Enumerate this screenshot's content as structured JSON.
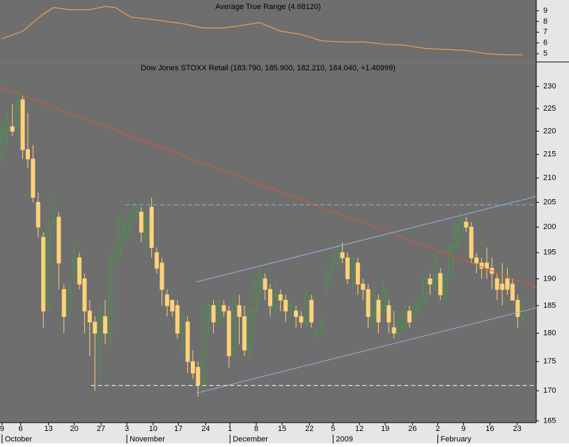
{
  "chart_data": [
    {
      "type": "line",
      "title": "Average True Range (4.68120)",
      "xlim": [
        -0.4,
        103.6
      ],
      "ylim": [
        4.3,
        10
      ],
      "yticks": [
        5,
        6,
        7,
        8,
        9
      ],
      "series": [
        {
          "color": "#f0a050",
          "x": [
            0,
            4,
            8,
            10,
            13,
            17,
            20,
            22,
            25,
            29,
            35,
            39,
            43,
            46,
            50,
            54,
            58,
            62,
            66,
            70,
            74,
            78,
            82,
            86,
            90,
            94,
            98,
            101
          ],
          "values": [
            6.4,
            7.1,
            8.7,
            9.3,
            9.1,
            9.1,
            9.4,
            9.3,
            8.4,
            8.2,
            7.8,
            7.4,
            7.4,
            7.6,
            7.9,
            7.1,
            6.8,
            6.2,
            6.1,
            6.1,
            5.9,
            5.8,
            5.5,
            5.4,
            5.3,
            5.0,
            4.9,
            4.9
          ]
        }
      ]
    },
    {
      "type": "candlestick",
      "title": "Dow Jones STOXX Retail (183.790, 185.900, 182.210, 184.040, +1.40999)",
      "log_scale": true,
      "xlim": [
        -0.4,
        103.6
      ],
      "ylim": [
        164.7,
        235.5
      ],
      "yticks": [
        165,
        170,
        175,
        180,
        185,
        190,
        195,
        200,
        205,
        210,
        215,
        220,
        225,
        230
      ],
      "xticks": [
        {
          "value": 0,
          "label": "9"
        },
        {
          "value": 3.6,
          "label": "6"
        },
        {
          "value": 9,
          "label": "13"
        },
        {
          "value": 14,
          "label": "20"
        },
        {
          "value": 19.2,
          "label": "27"
        },
        {
          "value": 24.2,
          "label": "3"
        },
        {
          "value": 29.3,
          "label": "10"
        },
        {
          "value": 34.2,
          "label": "17"
        },
        {
          "value": 39.5,
          "label": "24"
        },
        {
          "value": 44.2,
          "label": "1"
        },
        {
          "value": 49.3,
          "label": "8"
        },
        {
          "value": 54.3,
          "label": "15"
        },
        {
          "value": 59.6,
          "label": "22"
        },
        {
          "value": 64.2,
          "label": "5"
        },
        {
          "value": 69.3,
          "label": "12"
        },
        {
          "value": 74.3,
          "label": "19"
        },
        {
          "value": 79.6,
          "label": "26"
        },
        {
          "value": 84.5,
          "label": "2"
        },
        {
          "value": 89.5,
          "label": "9"
        },
        {
          "value": 94.6,
          "label": "16"
        },
        {
          "value": 99.9,
          "label": "23"
        }
      ],
      "month_labels": [
        {
          "value": 0,
          "label": "October"
        },
        {
          "value": 24.2,
          "label": "November"
        },
        {
          "value": 44.2,
          "label": "December"
        },
        {
          "value": 64.2,
          "label": "2009"
        },
        {
          "value": 84.5,
          "label": "February"
        }
      ],
      "up_color": "#3fa03f",
      "down_color": "#ffd27a",
      "open": [
        218,
        220,
        221,
        221,
        227,
        216,
        214,
        205,
        198,
        185,
        201,
        202,
        188,
        184,
        192,
        194,
        190,
        184,
        182,
        178,
        183,
        180,
        194,
        196,
        199,
        200,
        203,
        203,
        198,
        204,
        195,
        193,
        187,
        186,
        185,
        180,
        182,
        175,
        174,
        172,
        183,
        185,
        182,
        185,
        184,
        177,
        185,
        183,
        177,
        184,
        189,
        190,
        188,
        185,
        187,
        186,
        185,
        184,
        183,
        182,
        186,
        180,
        181,
        189,
        192,
        193,
        195,
        194,
        191,
        193,
        189,
        188,
        183,
        186,
        184,
        185,
        181,
        180,
        181,
        184,
        183,
        185,
        186,
        190,
        189,
        191,
        187,
        191,
        196,
        199,
        201,
        200,
        194,
        193,
        193,
        192,
        190,
        189,
        190,
        189,
        186,
        183
      ],
      "high": [
        222,
        224,
        226,
        229,
        228,
        224,
        217,
        207,
        199,
        201,
        207,
        203,
        189,
        190,
        197,
        195,
        191,
        186,
        183,
        185,
        186,
        195,
        197,
        203,
        201,
        204,
        205,
        204,
        203,
        206,
        196,
        194,
        188,
        186,
        186,
        184,
        183,
        177,
        175,
        185,
        186,
        186,
        186,
        186,
        185,
        186,
        187,
        185,
        185,
        190,
        193,
        191,
        189,
        190,
        188,
        187,
        186,
        185,
        184,
        188,
        187,
        181,
        183,
        192,
        195,
        197,
        197,
        195,
        194,
        194,
        190,
        189,
        188,
        187,
        190,
        186,
        184,
        183,
        185,
        185,
        186,
        187,
        192,
        191,
        195,
        192,
        191,
        197,
        201,
        203,
        202,
        201,
        195,
        194,
        196,
        194,
        191,
        193,
        192,
        190,
        187,
        186
      ],
      "low": [
        213,
        217,
        219,
        219,
        214,
        212,
        205,
        198,
        181,
        184,
        198,
        188,
        180,
        183,
        189,
        188,
        180,
        176,
        170,
        172,
        178,
        178,
        193,
        194,
        197,
        198,
        201,
        197,
        194,
        194,
        191,
        185,
        183,
        183,
        179,
        176,
        173,
        172,
        169,
        170,
        180,
        180,
        181,
        183,
        174,
        175,
        178,
        176,
        175,
        182,
        186,
        186,
        183,
        183,
        184,
        182,
        183,
        181,
        181,
        181,
        181,
        179,
        180,
        187,
        191,
        192,
        193,
        189,
        188,
        187,
        186,
        181,
        181,
        180,
        183,
        180,
        179,
        179,
        180,
        181,
        182,
        184,
        185,
        187,
        188,
        186,
        186,
        190,
        195,
        197,
        199,
        193,
        191,
        190,
        190,
        188,
        186,
        185,
        187,
        186,
        181,
        182
      ],
      "close": [
        220,
        222,
        220,
        226,
        216,
        214,
        206,
        200,
        184,
        200,
        201,
        193,
        183,
        188,
        194,
        189,
        184,
        182,
        180,
        183,
        180,
        194,
        196,
        202,
        200,
        203,
        204,
        199,
        202,
        196,
        192,
        188,
        185,
        184,
        180,
        183,
        175,
        173,
        171,
        184,
        185,
        182,
        185,
        184,
        176,
        186,
        183,
        177,
        184,
        189,
        191,
        188,
        185,
        187,
        186,
        184,
        185,
        183,
        182,
        187,
        182,
        180,
        182,
        191,
        193,
        195,
        194,
        190,
        193,
        189,
        188,
        183,
        187,
        182,
        188,
        182,
        180,
        182,
        184,
        182,
        185,
        186,
        190,
        189,
        193,
        187,
        190,
        196,
        200,
        202,
        200,
        194,
        193,
        192,
        192,
        191,
        188,
        188,
        188,
        186,
        183,
        184
      ],
      "lines": [
        {
          "x": [
            -0.4,
            103.6
          ],
          "y": [
            229.8,
            188.4
          ],
          "color": "#e8552a",
          "dash": false
        },
        {
          "x": [
            37.7,
            103.6
          ],
          "y": [
            189.4,
            206.2
          ],
          "color": "#8fb3e0",
          "dash": false
        },
        {
          "x": [
            37.7,
            103.6
          ],
          "y": [
            169.6,
            184.6
          ],
          "color": "#8fb3e0",
          "dash": false
        },
        {
          "x": [
            23.9,
            103.6
          ],
          "y": [
            204.5,
            204.5
          ],
          "color": "#8fb3e0",
          "dash": true
        },
        {
          "x": [
            17.2,
            103.6
          ],
          "y": [
            170.9,
            170.9
          ],
          "color": "#ffffff",
          "dash": true
        }
      ]
    }
  ]
}
